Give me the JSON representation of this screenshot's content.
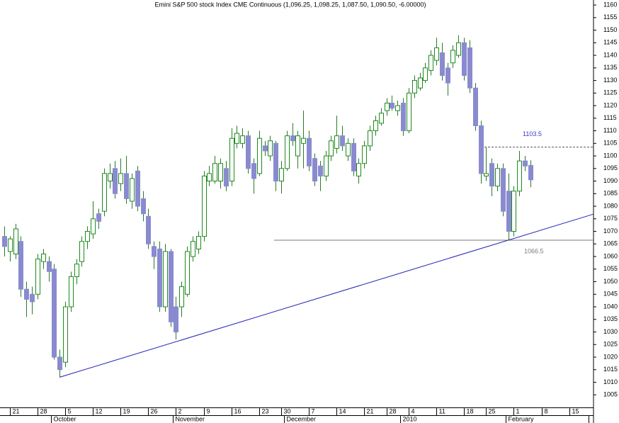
{
  "chart_data": {
    "type": "candlestick",
    "title": "Emini S&P 500 stock Index CME Continuous (1,096.25, 1,098.25, 1,087.50, 1,090.50, -6.00000)",
    "categories": [
      null,
      "21",
      null,
      null,
      null,
      null,
      "28",
      null,
      null,
      null,
      null,
      "5",
      null,
      null,
      null,
      null,
      "12",
      null,
      null,
      null,
      null,
      "19",
      null,
      null,
      null,
      null,
      "26",
      null,
      null,
      null,
      null,
      "2",
      null,
      null,
      null,
      null,
      "9",
      null,
      null,
      null,
      null,
      "16",
      null,
      null,
      null,
      null,
      "23",
      null,
      null,
      null,
      "30",
      null,
      null,
      null,
      null,
      "7",
      null,
      null,
      null,
      null,
      "14",
      null,
      null,
      null,
      null,
      "21",
      null,
      null,
      null,
      "28",
      null,
      null,
      null,
      "4",
      null,
      null,
      null,
      null,
      "11",
      null,
      null,
      null,
      null,
      "18",
      null,
      null,
      null,
      "25",
      null,
      null,
      null,
      null,
      "1",
      null,
      null,
      null,
      null,
      "8",
      null,
      null,
      null,
      null,
      "15",
      null,
      null,
      null,
      null
    ],
    "month_labels": [
      null,
      null,
      null,
      null,
      null,
      null,
      null,
      null,
      null,
      "October",
      null,
      null,
      null,
      null,
      null,
      null,
      null,
      null,
      null,
      null,
      null,
      null,
      null,
      null,
      null,
      null,
      null,
      null,
      null,
      null,
      null,
      "November",
      null,
      null,
      null,
      null,
      null,
      null,
      null,
      null,
      null,
      null,
      null,
      null,
      null,
      null,
      null,
      null,
      null,
      null,
      null,
      "December",
      null,
      null,
      null,
      null,
      null,
      null,
      null,
      null,
      null,
      null,
      null,
      null,
      null,
      null,
      null,
      null,
      null,
      null,
      null,
      null,
      "2010",
      null,
      null,
      null,
      null,
      null,
      null,
      null,
      null,
      null,
      null,
      null,
      null,
      null,
      null,
      null,
      null,
      null,
      null,
      "February",
      null,
      null,
      null,
      null,
      null,
      null,
      null,
      null,
      null,
      null,
      null,
      null,
      null,
      null
    ],
    "open": [
      1068,
      1062,
      1061,
      1066,
      1047,
      1045,
      1045,
      1058,
      1058,
      1055,
      1020,
      1018,
      1040,
      1052,
      1058,
      1066,
      1069,
      1077,
      1078,
      1090,
      1095,
      1089,
      1093,
      1082,
      1094,
      1083,
      1076,
      1064,
      1063,
      1040,
      1062,
      1040,
      1040,
      1045,
      1060,
      1063,
      1068,
      1090,
      1090,
      1090,
      1095,
      1090,
      1105,
      1105,
      1108,
      1097,
      1093,
      1104,
      1100,
      1105,
      1090,
      1095,
      1108,
      1100,
      1105,
      1107,
      1099,
      1096,
      1092,
      1100,
      1103,
      1108,
      1100,
      1105,
      1092,
      1097,
      1104,
      1110,
      1113,
      1118,
      1121,
      1118,
      1121,
      1110,
      1125,
      1127,
      1130,
      1134,
      1138,
      1141,
      1135,
      1137,
      1140,
      1145,
      1143,
      1127,
      1112,
      1092,
      1097,
      1088,
      1095,
      1086,
      1070,
      1086,
      1098,
      1096.25,
      null,
      null,
      null,
      null,
      null,
      null,
      null,
      null,
      null,
      null,
      null
    ],
    "high": [
      1072,
      1068,
      1073,
      1068,
      1050,
      1048,
      1061,
      1063,
      1060,
      1057,
      1023,
      1042,
      1054,
      1059,
      1068,
      1072,
      1082,
      1079,
      1095,
      1097,
      1098,
      1099,
      1100,
      1093,
      1096,
      1086,
      1079,
      1066,
      1066,
      1065,
      1063,
      1044,
      1050,
      1064,
      1068,
      1070,
      1094,
      1096,
      1100,
      1099,
      1098,
      1111,
      1112,
      1111,
      1110,
      1099,
      1110,
      1106,
      1108,
      1106,
      1098,
      1110,
      1113,
      1110,
      1118,
      1110,
      1101,
      1098,
      1102,
      1108,
      1116,
      1112,
      1107,
      1107,
      1099,
      1106,
      1112,
      1116,
      1119,
      1123,
      1124,
      1122,
      1123,
      1127,
      1132,
      1133,
      1137,
      1142,
      1147,
      1145,
      1137,
      1144,
      1148,
      1147,
      1146,
      1129,
      1114,
      1103.5,
      1099,
      1097,
      1097,
      1093,
      1088,
      1102,
      1100,
      1098.25,
      null,
      null,
      null,
      null,
      null,
      null,
      null,
      null,
      null,
      null,
      null
    ],
    "low": [
      1060,
      1058,
      1059,
      1044,
      1036,
      1037,
      1043,
      1055,
      1050,
      1019,
      1012,
      1016,
      1038,
      1049,
      1056,
      1063,
      1067,
      1071,
      1076,
      1087,
      1083,
      1086,
      1081,
      1079,
      1078,
      1074,
      1063,
      1055,
      1038,
      1038,
      1032,
      1027,
      1036,
      1044,
      1058,
      1061,
      1066,
      1088,
      1089,
      1087,
      1086,
      1088,
      1103,
      1103,
      1093,
      1085,
      1092,
      1100,
      1098,
      1086,
      1085,
      1094,
      1104,
      1095,
      1095,
      1094,
      1088,
      1086,
      1090,
      1098,
      1101,
      1102,
      1098,
      1092,
      1089,
      1095,
      1102,
      1108,
      1112,
      1116,
      1118,
      1116,
      1108,
      1109,
      1123,
      1126,
      1129,
      1132,
      1136,
      1130,
      1124,
      1135,
      1139,
      1130,
      1125,
      1110,
      1089,
      1090,
      1084,
      1086,
      1076,
      1066.5,
      1068,
      1084,
      1094,
      1087.5,
      null,
      null,
      null,
      null,
      null,
      null,
      null,
      null,
      null,
      null,
      null
    ],
    "close": [
      1064,
      1067,
      1071,
      1047,
      1043,
      1042,
      1059,
      1061,
      1054,
      1020,
      1015,
      1040,
      1052,
      1057,
      1066,
      1070,
      1075,
      1074,
      1093,
      1093,
      1085,
      1093,
      1083,
      1091,
      1080,
      1077,
      1065,
      1060,
      1040,
      1062,
      1034,
      1030,
      1048,
      1062,
      1066,
      1068,
      1092,
      1093,
      1097,
      1097,
      1088,
      1107,
      1109,
      1108,
      1095,
      1091,
      1107,
      1102,
      1106,
      1090,
      1095,
      1108,
      1106,
      1108,
      1107,
      1096,
      1090,
      1092,
      1100,
      1106,
      1108,
      1104,
      1105,
      1094,
      1097,
      1104,
      1110,
      1114,
      1117,
      1121,
      1119,
      1120,
      1110,
      1125,
      1130,
      1131,
      1135,
      1140,
      1143,
      1132,
      1129,
      1142,
      1145,
      1132,
      1127,
      1112,
      1093,
      1093,
      1088,
      1095,
      1078,
      1070,
      1086,
      1098,
      1096,
      1090.5,
      null,
      null,
      null,
      null,
      null,
      null,
      null,
      null,
      null,
      null,
      null
    ],
    "up_color": "#1b8a1b",
    "down_color": "#8a8ad0",
    "wick_color": "#2a7a2a",
    "trend_color": "#1f1fb4",
    "resistance": {
      "value": 1103.5,
      "color": "#3838c8"
    },
    "support": {
      "value": 1066.5,
      "color": "#7a7a7a"
    },
    "ylim": [
      1000,
      1162
    ],
    "yticks": [
      1005,
      1010,
      1015,
      1020,
      1025,
      1030,
      1035,
      1040,
      1045,
      1050,
      1055,
      1060,
      1065,
      1070,
      1075,
      1080,
      1085,
      1090,
      1095,
      1100,
      1105,
      1110,
      1115,
      1120,
      1125,
      1130,
      1135,
      1140,
      1145,
      1150,
      1155,
      1160
    ]
  }
}
